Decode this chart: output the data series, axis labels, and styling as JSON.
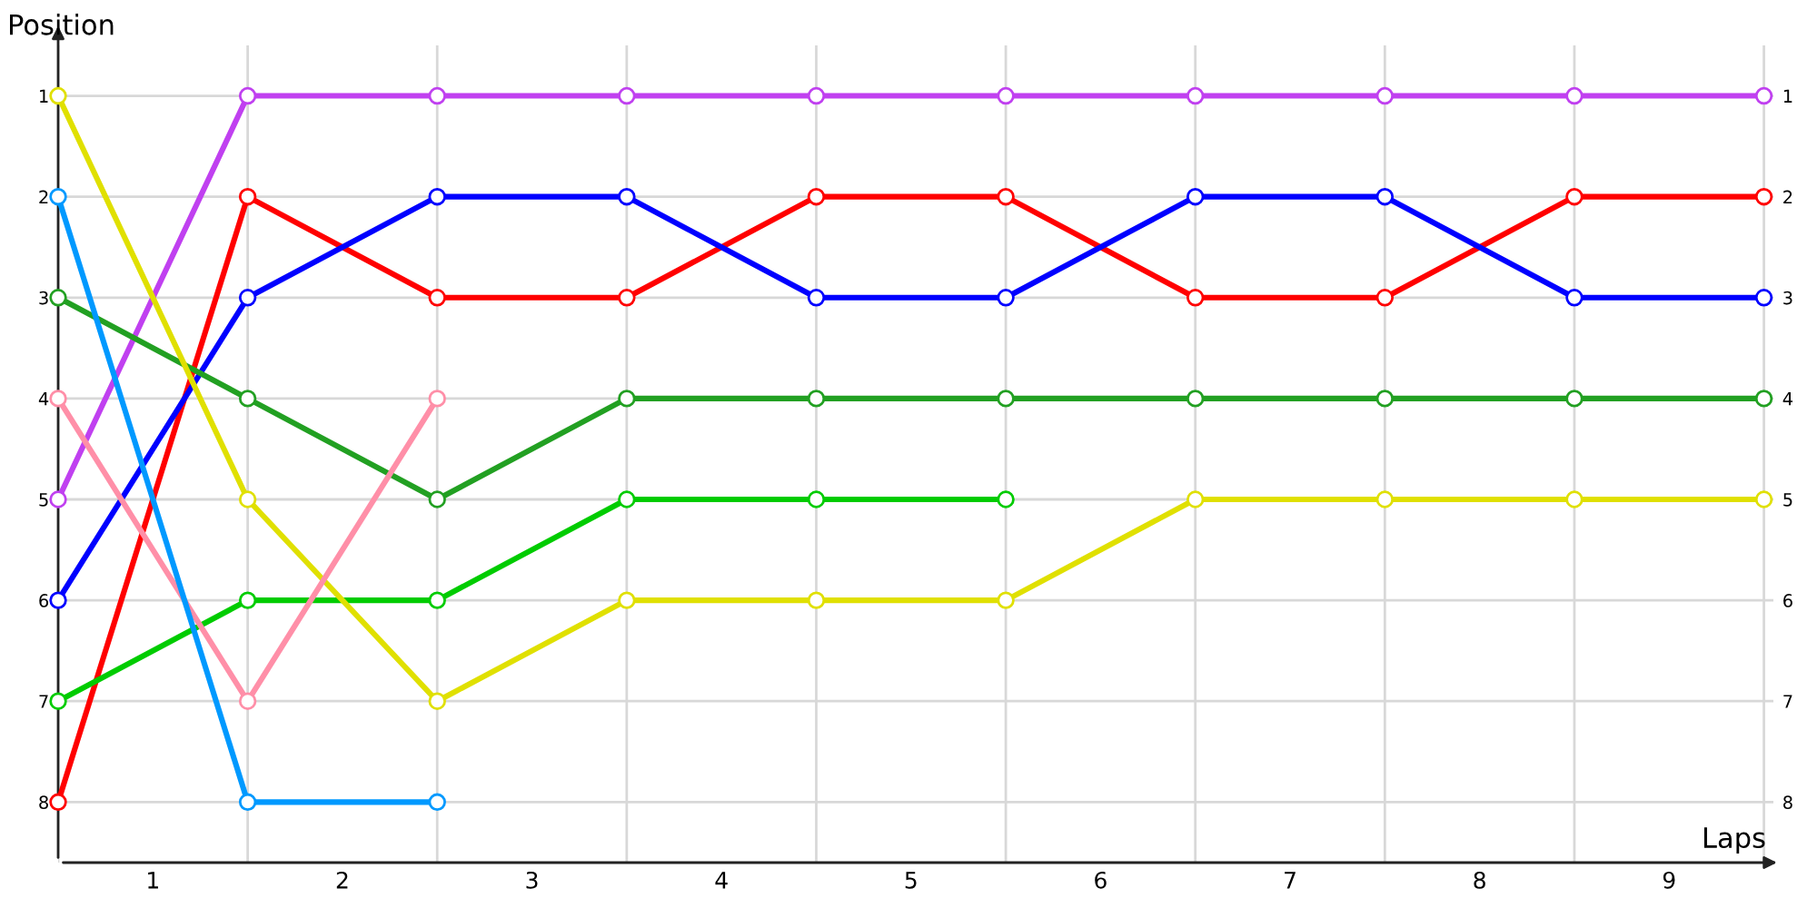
{
  "chart_data": {
    "type": "line",
    "xlabel": "Laps",
    "ylabel": "Position",
    "x": [
      0,
      1,
      2,
      3,
      4,
      5,
      6,
      7,
      8,
      9
    ],
    "xlim": [
      0,
      9.05
    ],
    "ylim": [
      8.6,
      0.5
    ],
    "y2lim": [
      8.6,
      0.5
    ],
    "xticks": [
      {
        "value": 0,
        "label": null
      },
      {
        "value": 0.5,
        "label": "1"
      },
      {
        "value": 1,
        "label": null
      },
      {
        "value": 1.5,
        "label": "2"
      },
      {
        "value": 2,
        "label": null
      },
      {
        "value": 2.5,
        "label": "3"
      },
      {
        "value": 3,
        "label": null
      },
      {
        "value": 3.5,
        "label": "4"
      },
      {
        "value": 4,
        "label": null
      },
      {
        "value": 4.5,
        "label": "5"
      },
      {
        "value": 5,
        "label": null
      },
      {
        "value": 5.5,
        "label": "6"
      },
      {
        "value": 6,
        "label": null
      },
      {
        "value": 6.5,
        "label": "7"
      },
      {
        "value": 7,
        "label": null
      },
      {
        "value": 7.5,
        "label": "8"
      },
      {
        "value": 8,
        "label": null
      },
      {
        "value": 8.5,
        "label": "9"
      },
      {
        "value": 9,
        "label": null
      }
    ],
    "yticks": [
      1,
      2,
      3,
      4,
      5,
      6,
      7,
      8
    ],
    "y2ticks": [
      1,
      2,
      3,
      4,
      5,
      6,
      7,
      8
    ],
    "grid": true,
    "marker": "circle",
    "line_style": "solid",
    "legend": false,
    "series": [
      {
        "color": "#c040f0",
        "values": [
          5,
          1,
          1,
          1,
          1,
          1,
          1,
          1,
          1,
          1
        ]
      },
      {
        "color": "#ff0000",
        "values": [
          8,
          2,
          3,
          3,
          2,
          2,
          3,
          3,
          2,
          2
        ]
      },
      {
        "color": "#0000ff",
        "values": [
          6,
          3,
          2,
          2,
          3,
          3,
          2,
          2,
          3,
          3
        ]
      },
      {
        "color": "#22a022",
        "values": [
          3,
          4,
          5,
          4,
          4,
          4,
          4,
          4,
          4,
          4
        ]
      },
      {
        "color": "#00cc00",
        "values": [
          7,
          6,
          6,
          5,
          5,
          5,
          null,
          null,
          null,
          null
        ]
      },
      {
        "color": "#e0e000",
        "values": [
          1,
          5,
          7,
          6,
          6,
          6,
          5,
          5,
          5,
          5
        ]
      },
      {
        "color": "#ff8fa8",
        "values": [
          4,
          7,
          4,
          null,
          null,
          null,
          null,
          null,
          null,
          null
        ]
      },
      {
        "color": "#0099ff",
        "values": [
          2,
          8,
          8,
          null,
          null,
          null,
          null,
          null,
          null,
          null
        ]
      }
    ]
  }
}
